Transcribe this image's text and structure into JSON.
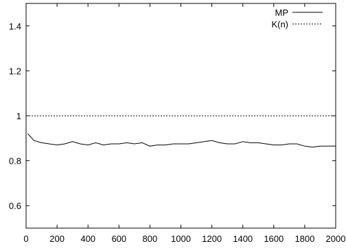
{
  "chart_data": {
    "type": "line",
    "title": "",
    "xlabel": "",
    "ylabel": "",
    "xlim": [
      0,
      2000
    ],
    "ylim": [
      0.5,
      1.5
    ],
    "x_ticks": [
      "0",
      "200",
      "400",
      "600",
      "800",
      "1000",
      "1200",
      "1400",
      "1600",
      "1800",
      "2000"
    ],
    "y_ticks": [
      "0.6",
      "0.8",
      "1",
      "1.2",
      "1.4"
    ],
    "grid": false,
    "legend_position": "top-right",
    "series": [
      {
        "name": "MP",
        "style": "solid",
        "color": "#000000",
        "x": [
          10,
          25,
          50,
          100,
          150,
          200,
          250,
          300,
          350,
          400,
          450,
          500,
          550,
          600,
          650,
          700,
          750,
          800,
          850,
          900,
          950,
          1000,
          1050,
          1100,
          1150,
          1200,
          1250,
          1300,
          1350,
          1400,
          1450,
          1500,
          1550,
          1600,
          1650,
          1700,
          1750,
          1800,
          1850,
          1900,
          1950,
          2000
        ],
        "y": [
          0.92,
          0.91,
          0.89,
          0.88,
          0.875,
          0.87,
          0.875,
          0.885,
          0.875,
          0.87,
          0.88,
          0.87,
          0.875,
          0.875,
          0.88,
          0.875,
          0.88,
          0.865,
          0.87,
          0.87,
          0.875,
          0.875,
          0.875,
          0.88,
          0.885,
          0.89,
          0.88,
          0.875,
          0.875,
          0.885,
          0.88,
          0.88,
          0.875,
          0.87,
          0.87,
          0.875,
          0.875,
          0.865,
          0.86,
          0.865,
          0.865,
          0.865
        ]
      },
      {
        "name": "K(n)",
        "style": "dashed",
        "color": "#000000",
        "x": [
          0,
          2000
        ],
        "y": [
          1,
          1
        ]
      }
    ]
  }
}
